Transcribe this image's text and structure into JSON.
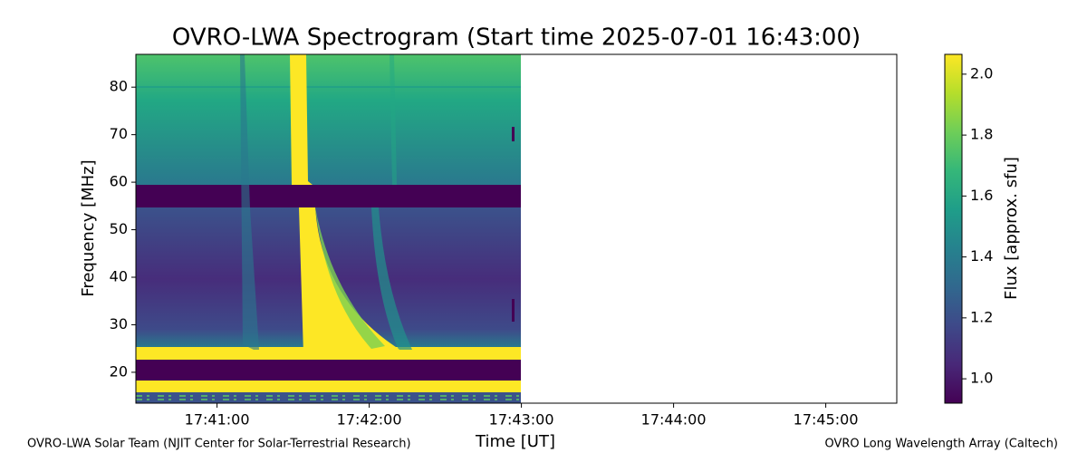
{
  "chart_data": {
    "type": "heatmap",
    "title": "OVRO-LWA Spectrogram (Start time 2025-07-01 16:43:00)",
    "xlabel": "Time [UT]",
    "ylabel": "Frequency [MHz]",
    "xlim": [
      "17:40:28",
      "17:45:28"
    ],
    "xticks": [
      "17:41:00",
      "17:42:00",
      "17:43:00",
      "17:44:00",
      "17:45:00"
    ],
    "ylim": [
      13.5,
      86.9
    ],
    "yticks": [
      20,
      30,
      40,
      50,
      60,
      70,
      80
    ],
    "colorbar": {
      "label": "Flux [approx. sfu]",
      "colormap": "viridis",
      "lim": [
        0.92,
        2.065
      ],
      "ticks": [
        {
          "value": 1,
          "label": "1.0"
        },
        1.2,
        1.4,
        1.6,
        1.8,
        {
          "value": 2,
          "label": "2.0"
        }
      ]
    }
  },
  "footer": {
    "left": "OVRO-LWA Solar Team (NJIT Center for Solar-Terrestrial Research)",
    "right": "OVRO Long Wavelength Array (Caltech)"
  }
}
